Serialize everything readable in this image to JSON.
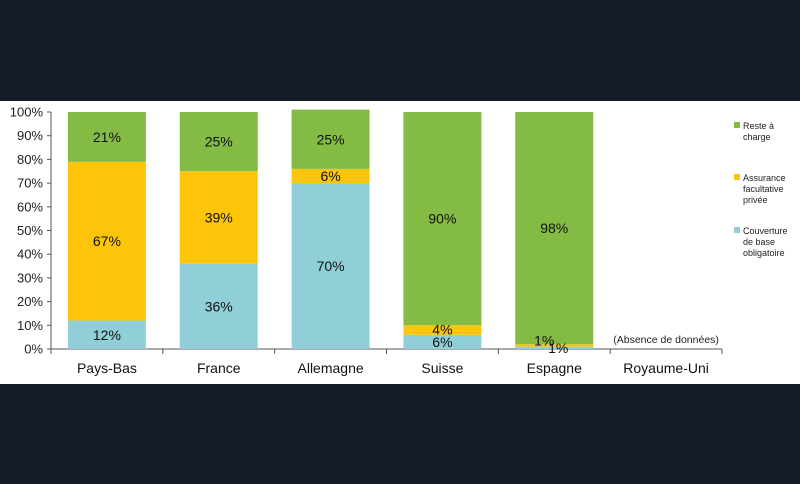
{
  "chart_data": {
    "type": "bar",
    "stacked": true,
    "percent": true,
    "categories": [
      "Pays-Bas",
      "France",
      "Allemagne",
      "Suisse",
      "Espagne",
      "Royaume-Uni"
    ],
    "series": [
      {
        "name": "Couverture de base obligatoire",
        "legend_lines": [
          "Couverture",
          "de base",
          "obligatoire"
        ],
        "color": "#91cfd8",
        "values": [
          12,
          36,
          70,
          6,
          1,
          null
        ],
        "labels": [
          "12%",
          "36%",
          "70%",
          "6%",
          "1%",
          ""
        ]
      },
      {
        "name": "Assurance facultative privée",
        "legend_lines": [
          "Assurance",
          "facultative",
          "privée"
        ],
        "color": "#fdc50a",
        "values": [
          67,
          39,
          6,
          4,
          1,
          null
        ],
        "labels": [
          "67%",
          "39%",
          "6%",
          "4%",
          "1%",
          ""
        ]
      },
      {
        "name": "Reste à charge",
        "legend_lines": [
          "Reste à",
          "charge"
        ],
        "color": "#83bb44",
        "values": [
          21,
          25,
          25,
          90,
          98,
          null
        ],
        "labels": [
          "21%",
          "25%",
          "25%",
          "90%",
          "98%",
          ""
        ]
      }
    ],
    "ylim": [
      0,
      100
    ],
    "yticks": [
      "0%",
      "10%",
      "20%",
      "30%",
      "40%",
      "50%",
      "60%",
      "70%",
      "80%",
      "90%",
      "100%"
    ],
    "annotation": "(Absence de données)",
    "grid": false,
    "legend_position": "right"
  }
}
